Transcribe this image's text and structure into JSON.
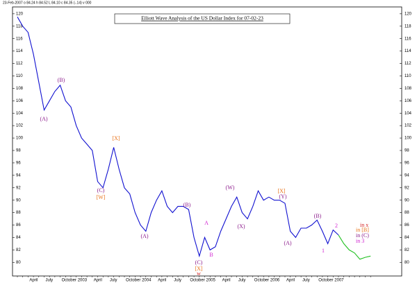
{
  "chart_data": {
    "type": "line",
    "title": "Elliott Wave Analysis of the US Dollar Index for 07-02-23",
    "header": "23-Feb-2007 o 84.24 h 84.52 L 84.10 c 84.35 (-.14) v 000",
    "categories": [
      null,
      null,
      "April",
      null,
      null,
      "July",
      null,
      null,
      "October",
      null,
      null,
      "2003",
      null,
      null,
      "April",
      null,
      null,
      "July",
      null,
      null,
      "October",
      null,
      null,
      "2004",
      null,
      null,
      "April",
      null,
      null,
      "July",
      null,
      null,
      "October",
      null,
      null,
      "2005",
      null,
      null,
      "April",
      null,
      null,
      "July",
      null,
      null,
      "October",
      null,
      null,
      "2006",
      null,
      null,
      "April",
      null,
      null,
      "July",
      null,
      null,
      "October",
      null,
      null,
      "2007",
      null,
      null,
      null,
      null,
      null,
      null,
      null
    ],
    "series": [
      {
        "color": "#1010d0",
        "values": [
          119.5,
          118,
          117,
          113.5,
          109,
          104.5,
          106,
          107.5,
          108.5,
          106,
          105,
          102,
          100,
          99,
          98,
          93,
          92,
          95,
          98.5,
          95,
          92,
          91,
          88,
          86,
          85,
          88,
          90,
          91.5,
          89,
          88,
          89,
          89,
          88.5,
          84,
          81,
          84,
          82,
          82.5,
          85,
          87,
          89,
          90.5,
          88,
          87,
          89,
          91.5,
          90,
          90.5,
          90,
          90,
          89.5,
          85,
          84,
          85.5,
          85.5,
          86,
          86.8,
          85,
          83,
          85.2,
          84.4,
          null,
          null,
          null,
          null,
          null,
          null
        ]
      },
      {
        "color": "#20c020",
        "values": [
          null,
          null,
          null,
          null,
          null,
          null,
          null,
          null,
          null,
          null,
          null,
          null,
          null,
          null,
          null,
          null,
          null,
          null,
          null,
          null,
          null,
          null,
          null,
          null,
          null,
          null,
          null,
          null,
          null,
          null,
          null,
          null,
          null,
          null,
          null,
          null,
          null,
          null,
          null,
          null,
          null,
          null,
          null,
          null,
          null,
          null,
          null,
          null,
          null,
          null,
          null,
          null,
          null,
          null,
          null,
          null,
          null,
          null,
          null,
          null,
          84.4,
          83,
          82,
          81.5,
          80.5,
          80.8,
          81
        ]
      }
    ],
    "ylim": [
      77.8,
      121.1
    ],
    "yticks": [
      80,
      82,
      84,
      86,
      88,
      90,
      92,
      94,
      96,
      98,
      100,
      102,
      104,
      106,
      108,
      110,
      112,
      114,
      116,
      118,
      120
    ],
    "annotations": [
      "(A)",
      "(B)",
      "(C)",
      "[W]",
      "[X]",
      "(A)",
      "(B)",
      "A",
      "(C)",
      "[X]",
      "w",
      "B",
      "(W)",
      "(X)",
      "[X]",
      "(Y)",
      "(A)",
      "(B)",
      "1",
      "2",
      "in x",
      "in [B]",
      "in (C)",
      "in 3"
    ]
  }
}
